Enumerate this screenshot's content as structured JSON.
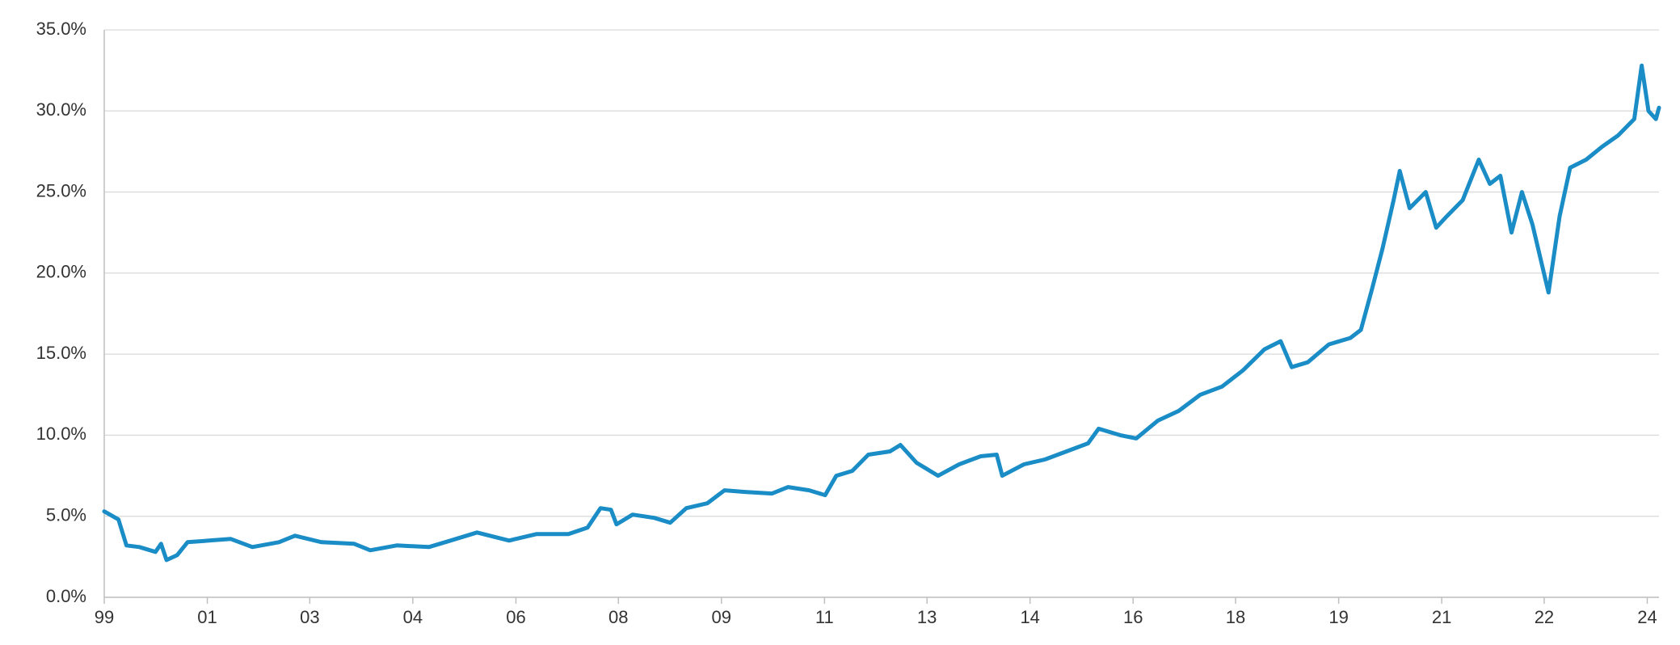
{
  "chart_data": {
    "type": "line",
    "x": [
      1999.0,
      1999.23,
      1999.36,
      1999.57,
      1999.83,
      1999.92,
      2000.01,
      2000.18,
      2000.35,
      2000.7,
      2001.05,
      2001.4,
      2001.83,
      2002.09,
      2002.52,
      2003.05,
      2003.31,
      2003.74,
      2004.26,
      2004.61,
      2005.04,
      2005.56,
      2006.0,
      2006.52,
      2006.83,
      2007.04,
      2007.21,
      2007.3,
      2007.56,
      2007.91,
      2008.17,
      2008.43,
      2008.77,
      2009.05,
      2009.38,
      2009.82,
      2010.08,
      2010.42,
      2010.68,
      2010.86,
      2011.12,
      2011.38,
      2011.73,
      2011.9,
      2012.16,
      2012.51,
      2012.85,
      2013.2,
      2013.46,
      2013.55,
      2013.9,
      2014.24,
      2014.59,
      2014.94,
      2015.11,
      2015.46,
      2015.72,
      2016.07,
      2016.41,
      2016.76,
      2017.11,
      2017.45,
      2017.8,
      2018.06,
      2018.24,
      2018.5,
      2018.84,
      2019.19,
      2019.36,
      2019.54,
      2019.71,
      2019.89,
      2019.99,
      2020.15,
      2020.41,
      2020.58,
      2020.75,
      2021.01,
      2021.27,
      2021.45,
      2021.62,
      2021.8,
      2021.97,
      2022.14,
      2022.4,
      2022.58,
      2022.75,
      2023.01,
      2023.27,
      2023.53,
      2023.79,
      2023.91,
      2024.02,
      2024.14,
      2024.19
    ],
    "values": [
      5.3,
      4.8,
      3.2,
      3.1,
      2.8,
      3.3,
      2.3,
      2.6,
      3.4,
      3.5,
      3.6,
      3.1,
      3.4,
      3.8,
      3.4,
      3.3,
      2.9,
      3.2,
      3.1,
      3.5,
      4.0,
      3.5,
      3.9,
      3.9,
      4.3,
      5.5,
      5.4,
      4.5,
      5.1,
      4.9,
      4.6,
      5.5,
      5.8,
      6.6,
      6.5,
      6.4,
      6.8,
      6.6,
      6.3,
      7.5,
      7.8,
      8.8,
      9.0,
      9.4,
      8.3,
      7.5,
      8.2,
      8.7,
      8.8,
      7.5,
      8.2,
      8.5,
      9.0,
      9.5,
      10.4,
      10.0,
      9.8,
      10.9,
      11.5,
      12.5,
      13.0,
      14.0,
      15.3,
      15.8,
      14.2,
      14.5,
      15.6,
      16.0,
      16.5,
      19.0,
      21.5,
      24.5,
      26.3,
      24.0,
      25.0,
      22.8,
      23.5,
      24.5,
      27.0,
      25.5,
      26.0,
      22.5,
      25.0,
      23.0,
      18.8,
      23.5,
      26.5,
      27.0,
      27.8,
      28.5,
      29.5,
      32.8,
      30.0,
      29.5,
      30.2
    ],
    "color": "#1a8cc6",
    "xlim": [
      1999,
      2024.19
    ],
    "xticks": [
      {
        "value": 1999,
        "label": "99"
      },
      {
        "value": 2000.67,
        "label": "01"
      },
      {
        "value": 2002.33,
        "label": "03"
      },
      {
        "value": 2004,
        "label": "04"
      },
      {
        "value": 2005.67,
        "label": "06"
      },
      {
        "value": 2007.33,
        "label": "08"
      },
      {
        "value": 2009,
        "label": "09"
      },
      {
        "value": 2010.67,
        "label": "11"
      },
      {
        "value": 2012.33,
        "label": "13"
      },
      {
        "value": 2014,
        "label": "14"
      },
      {
        "value": 2015.67,
        "label": "16"
      },
      {
        "value": 2017.33,
        "label": "18"
      },
      {
        "value": 2019,
        "label": "19"
      },
      {
        "value": 2020.67,
        "label": "21"
      },
      {
        "value": 2022.33,
        "label": "22"
      },
      {
        "value": 2024,
        "label": "24"
      }
    ],
    "ylim": [
      0,
      35
    ],
    "yticks": [
      {
        "value": 0,
        "label": "0.0%"
      },
      {
        "value": 5,
        "label": "5.0%"
      },
      {
        "value": 10,
        "label": "10.0%"
      },
      {
        "value": 15,
        "label": "15.0%"
      },
      {
        "value": 20,
        "label": "20.0%"
      },
      {
        "value": 25,
        "label": "25.0%"
      },
      {
        "value": 30,
        "label": "30.0%"
      },
      {
        "value": 35,
        "label": "35.0%"
      }
    ],
    "grid": true
  }
}
